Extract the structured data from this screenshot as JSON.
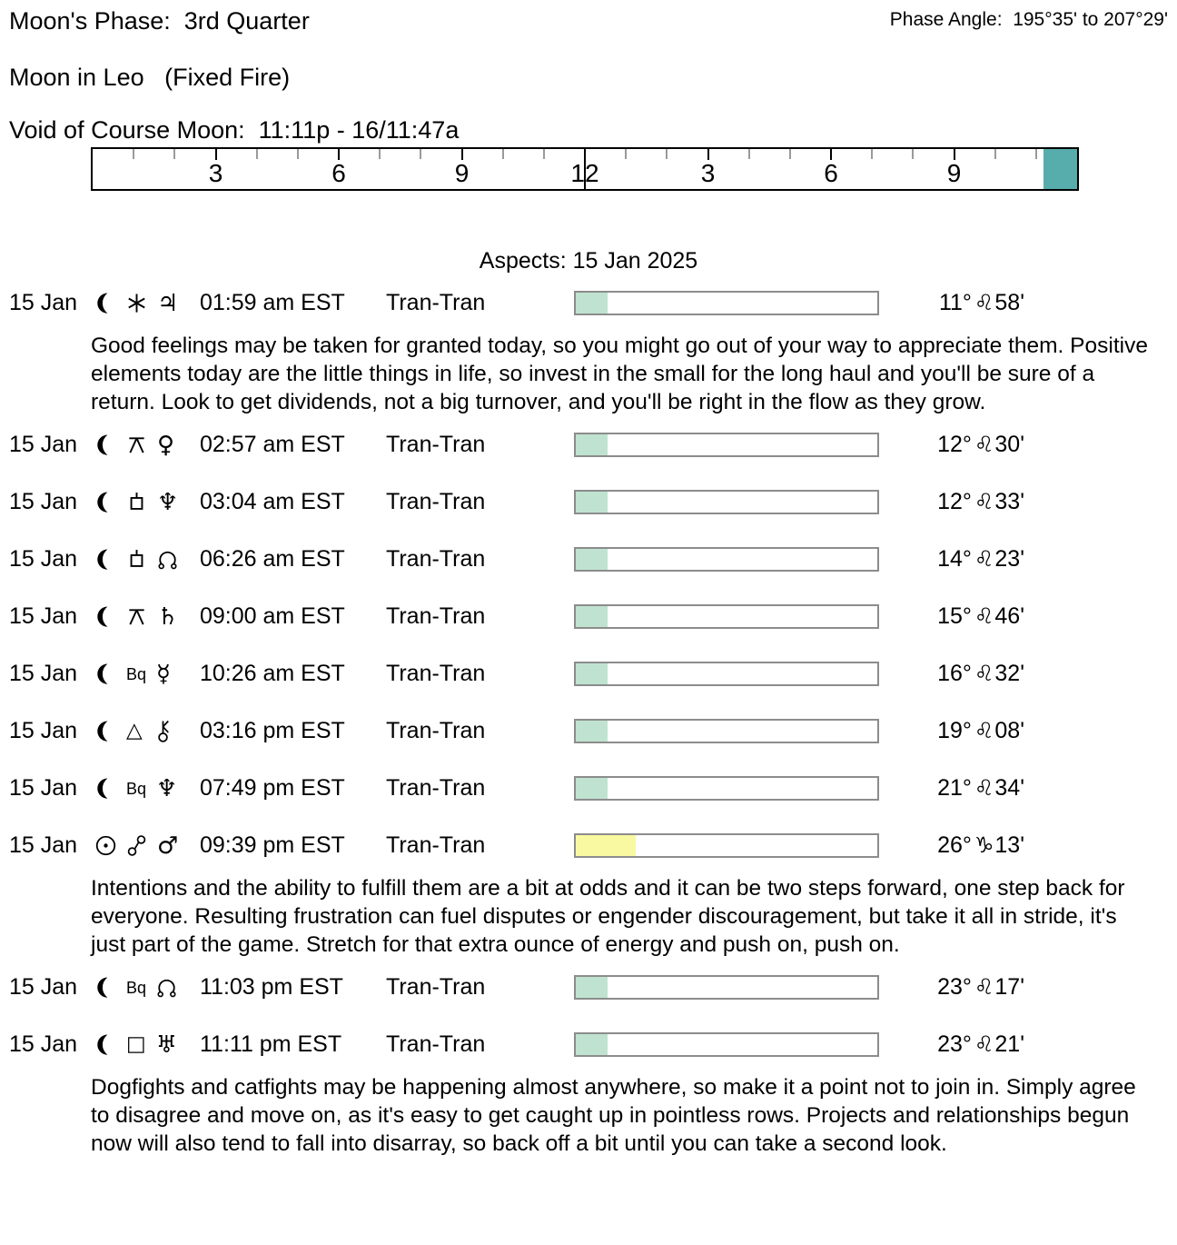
{
  "header": {
    "moons_phase": "Moon's Phase:  3rd Quarter",
    "phase_angle": "Phase Angle:  195°35' to 207°29'",
    "moon_sign": "Moon in Leo   (Fixed Fire)",
    "void_of_course": "Void of Course Moon:  11:11p - 16/11:47a"
  },
  "ruler": {
    "hours": 24,
    "labels": [
      {
        "hour": 3,
        "text": "3"
      },
      {
        "hour": 6,
        "text": "6"
      },
      {
        "hour": 9,
        "text": "9"
      },
      {
        "hour": 12,
        "text": "12"
      },
      {
        "hour": 15,
        "text": "3"
      },
      {
        "hour": 18,
        "text": "6"
      },
      {
        "hour": 21,
        "text": "9"
      }
    ],
    "void_start_pct": 96.6,
    "void_color": "#57adab"
  },
  "aspects_title": "Aspects: 15 Jan 2025",
  "glyph_map": {
    "moon": "svg:moon",
    "sun": "svg:sun",
    "sextile": "svg:sextile",
    "quincunx": "svg:quincunx",
    "sesquiquadrate": "svg:sesquiquadrate",
    "trine": "char:△:23",
    "square": "char:□:23",
    "opposition": "svg:opposition",
    "biquintile": "text:Bq",
    "node": "svg:node",
    "chiron": "svg:chiron",
    "jupiter": "char:♃:26",
    "venus": "char:♀:26",
    "neptune": "char:♆:26",
    "saturn": "char:♄:26",
    "mercury": "char:☿:26",
    "mars": "char:♂:26",
    "uranus": "char:♅:26"
  },
  "rows": [
    {
      "date": "15 Jan",
      "body1": "moon",
      "aspect": "sextile",
      "body2": "jupiter",
      "time": "01:59 am EST",
      "type": "Tran-Tran",
      "bar_fill_pct": 10.4,
      "bar_fill_color": "#bfe3d0",
      "position": {
        "deg": "11°",
        "sign": "♌",
        "min": "58'"
      },
      "interpretation": "Good feelings may be taken for granted today, so you might go out of your way to appreciate them. Positive elements today are the little things in life, so invest in the small for the long haul and you'll be sure of a return. Look to get dividends, not a big turnover, and you'll be right in the flow as they grow."
    },
    {
      "date": "15 Jan",
      "body1": "moon",
      "aspect": "quincunx",
      "body2": "venus",
      "time": "02:57 am EST",
      "type": "Tran-Tran",
      "bar_fill_pct": 10.4,
      "bar_fill_color": "#bfe3d0",
      "position": {
        "deg": "12°",
        "sign": "♌",
        "min": "30'"
      }
    },
    {
      "date": "15 Jan",
      "body1": "moon",
      "aspect": "sesquiquadrate",
      "body2": "neptune",
      "time": "03:04 am EST",
      "type": "Tran-Tran",
      "bar_fill_pct": 10.4,
      "bar_fill_color": "#bfe3d0",
      "position": {
        "deg": "12°",
        "sign": "♌",
        "min": "33'"
      }
    },
    {
      "date": "15 Jan",
      "body1": "moon",
      "aspect": "sesquiquadrate",
      "body2": "node",
      "time": "06:26 am EST",
      "type": "Tran-Tran",
      "bar_fill_pct": 10.4,
      "bar_fill_color": "#bfe3d0",
      "position": {
        "deg": "14°",
        "sign": "♌",
        "min": "23'"
      }
    },
    {
      "date": "15 Jan",
      "body1": "moon",
      "aspect": "quincunx",
      "body2": "saturn",
      "time": "09:00 am EST",
      "type": "Tran-Tran",
      "bar_fill_pct": 10.4,
      "bar_fill_color": "#bfe3d0",
      "position": {
        "deg": "15°",
        "sign": "♌",
        "min": "46'"
      }
    },
    {
      "date": "15 Jan",
      "body1": "moon",
      "aspect": "biquintile",
      "body2": "mercury",
      "time": "10:26 am EST",
      "type": "Tran-Tran",
      "bar_fill_pct": 10.4,
      "bar_fill_color": "#bfe3d0",
      "position": {
        "deg": "16°",
        "sign": "♌",
        "min": "32'"
      }
    },
    {
      "date": "15 Jan",
      "body1": "moon",
      "aspect": "trine",
      "body2": "chiron",
      "time": "03:16 pm EST",
      "type": "Tran-Tran",
      "bar_fill_pct": 10.4,
      "bar_fill_color": "#bfe3d0",
      "position": {
        "deg": "19°",
        "sign": "♌",
        "min": "08'"
      }
    },
    {
      "date": "15 Jan",
      "body1": "moon",
      "aspect": "biquintile",
      "body2": "neptune",
      "time": "07:49 pm EST",
      "type": "Tran-Tran",
      "bar_fill_pct": 10.4,
      "bar_fill_color": "#bfe3d0",
      "position": {
        "deg": "21°",
        "sign": "♌",
        "min": "34'"
      }
    },
    {
      "date": "15 Jan",
      "body1": "sun",
      "aspect": "opposition",
      "body2": "mars",
      "time": "09:39 pm EST",
      "type": "Tran-Tran",
      "bar_fill_pct": 20,
      "bar_fill_color": "#f9f9a2",
      "position": {
        "deg": "26°",
        "sign": "♑",
        "min": "13'"
      },
      "interpretation": "Intentions and the ability to fulfill them are a bit at odds and it can be two steps forward, one step back for everyone. Resulting frustration can fuel disputes or engender discouragement, but take it all in stride, it's just part of the game. Stretch for that extra ounce of energy and push on, push on."
    },
    {
      "date": "15 Jan",
      "body1": "moon",
      "aspect": "biquintile",
      "body2": "node",
      "time": "11:03 pm EST",
      "type": "Tran-Tran",
      "bar_fill_pct": 10.4,
      "bar_fill_color": "#bfe3d0",
      "position": {
        "deg": "23°",
        "sign": "♌",
        "min": "17'"
      }
    },
    {
      "date": "15 Jan",
      "body1": "moon",
      "aspect": "square",
      "body2": "uranus",
      "time": "11:11 pm EST",
      "type": "Tran-Tran",
      "bar_fill_pct": 10.4,
      "bar_fill_color": "#bfe3d0",
      "position": {
        "deg": "23°",
        "sign": "♌",
        "min": "21'"
      },
      "interpretation": "Dogfights and catfights may be happening almost anywhere, so make it a point not to join in. Simply agree to disagree and move on, as it's easy to get caught up in pointless rows. Projects and relationships begun now will also tend to fall into disarray, so back off a bit until you can take a second look."
    }
  ]
}
